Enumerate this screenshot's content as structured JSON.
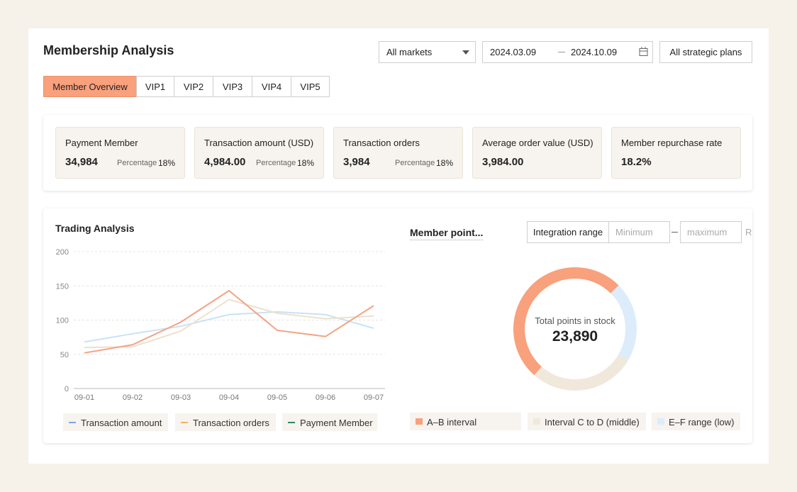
{
  "header": {
    "title": "Membership Analysis"
  },
  "filters": {
    "market": "All markets",
    "date_start": "2024.03.09",
    "date_end": "2024.10.09",
    "plan": "All strategic plans"
  },
  "tabs": [
    "Member Overview",
    "VIP1",
    "VIP2",
    "VIP3",
    "VIP4",
    "VIP5"
  ],
  "kpis": [
    {
      "label": "Payment Member",
      "value": "34,984",
      "percentage_label": "Percentage",
      "percentage": "18%"
    },
    {
      "label": "Transaction amount (USD)",
      "value": "4,984.00",
      "percentage_label": "Percentage",
      "percentage": "18%"
    },
    {
      "label": "Transaction orders",
      "value": "3,984",
      "percentage_label": "Percentage",
      "percentage": "18%"
    },
    {
      "label": "Average order value (USD)",
      "value": "3,984.00"
    },
    {
      "label": "Member repurchase rate",
      "value": "18.2%"
    }
  ],
  "chart_data": [
    {
      "type": "line",
      "title": "Trading Analysis",
      "categories": [
        "09-01",
        "09-02",
        "09-03",
        "09-04",
        "09-05",
        "09-06",
        "09-07"
      ],
      "ylim": [
        0,
        200
      ],
      "yticks": [
        0,
        50,
        100,
        150,
        200
      ],
      "grid": true,
      "series": [
        {
          "name": "Transaction amount",
          "color": "#c9e2f4",
          "legend_color": "#7aa6f2",
          "values": [
            68,
            80,
            91,
            108,
            112,
            108,
            88
          ]
        },
        {
          "name": "Transaction orders",
          "color": "#eee0cf",
          "legend_color": "#f1b45c",
          "values": [
            60,
            61,
            84,
            130,
            110,
            102,
            106
          ]
        },
        {
          "name": "Payment Member",
          "color": "#f4a382",
          "legend_color": "#2e8a68",
          "values": [
            52,
            64,
            97,
            143,
            85,
            76,
            121
          ]
        }
      ]
    },
    {
      "type": "donut",
      "title": "Member point...",
      "range_filter": {
        "label": "Integration range",
        "min_placeholder": "Minimum",
        "max_placeholder": "maximum",
        "action": "R"
      },
      "center_label": "Total points in stock",
      "center_value": "23,890",
      "categories": [
        "A–B interval",
        "Interval C to D (middle)",
        "E–F range (low)"
      ],
      "values": [
        51,
        28,
        21
      ],
      "colors": [
        "#f9a07c",
        "#f1e8dc",
        "#dcecfb"
      ]
    }
  ]
}
